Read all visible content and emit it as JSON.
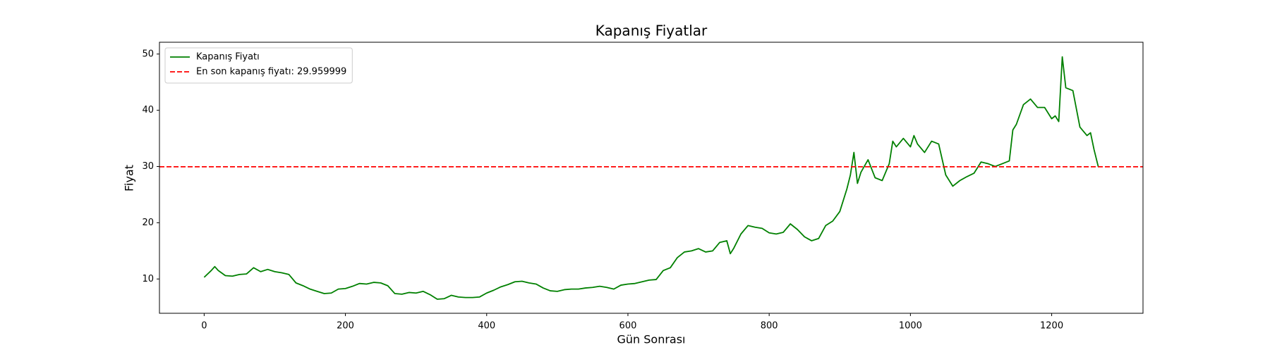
{
  "chart_data": {
    "type": "line",
    "title": "Kapanış Fiyatlar",
    "xlabel": "Gün Sonrası",
    "ylabel": "Fiyat",
    "x": [
      0,
      10,
      15,
      20,
      30,
      40,
      50,
      60,
      70,
      80,
      90,
      100,
      110,
      120,
      130,
      140,
      150,
      160,
      170,
      180,
      190,
      200,
      210,
      220,
      230,
      240,
      250,
      260,
      270,
      280,
      290,
      300,
      310,
      320,
      330,
      340,
      350,
      360,
      370,
      380,
      390,
      400,
      410,
      420,
      430,
      440,
      450,
      460,
      470,
      480,
      490,
      500,
      510,
      520,
      530,
      540,
      550,
      560,
      570,
      580,
      590,
      600,
      610,
      620,
      630,
      640,
      650,
      660,
      670,
      680,
      690,
      700,
      710,
      720,
      730,
      740,
      745,
      750,
      760,
      770,
      780,
      790,
      800,
      810,
      820,
      830,
      840,
      850,
      860,
      870,
      880,
      890,
      900,
      910,
      915,
      920,
      925,
      930,
      940,
      950,
      960,
      970,
      975,
      980,
      990,
      1000,
      1005,
      1010,
      1020,
      1030,
      1040,
      1050,
      1060,
      1070,
      1080,
      1090,
      1100,
      1110,
      1120,
      1130,
      1140,
      1145,
      1150,
      1160,
      1170,
      1180,
      1190,
      1200,
      1205,
      1210,
      1215,
      1220,
      1230,
      1240,
      1250,
      1255,
      1260,
      1266
    ],
    "series": [
      {
        "name": "Kapanış Fiyatı",
        "color": "green",
        "values": [
          10.3,
          11.5,
          12.2,
          11.5,
          10.6,
          10.5,
          10.8,
          10.9,
          12.0,
          11.3,
          11.7,
          11.3,
          11.1,
          10.8,
          9.3,
          8.8,
          8.2,
          7.8,
          7.4,
          7.5,
          8.2,
          8.3,
          8.7,
          9.2,
          9.1,
          9.4,
          9.3,
          8.8,
          7.4,
          7.3,
          7.6,
          7.5,
          7.8,
          7.2,
          6.4,
          6.5,
          7.1,
          6.8,
          6.7,
          6.7,
          6.8,
          7.5,
          8.0,
          8.6,
          9.0,
          9.5,
          9.6,
          9.3,
          9.1,
          8.4,
          7.9,
          7.8,
          8.1,
          8.2,
          8.2,
          8.4,
          8.5,
          8.7,
          8.5,
          8.2,
          8.9,
          9.1,
          9.2,
          9.5,
          9.8,
          9.9,
          11.5,
          12.0,
          13.8,
          14.8,
          15.0,
          15.4,
          14.8,
          15.0,
          16.5,
          16.8,
          14.5,
          15.5,
          18.0,
          19.5,
          19.2,
          19.0,
          18.2,
          18.0,
          18.3,
          19.8,
          18.8,
          17.5,
          16.8,
          17.2,
          19.5,
          20.3,
          22.0,
          26.0,
          28.5,
          32.5,
          27.0,
          29.0,
          31.2,
          28.0,
          27.5,
          30.5,
          34.5,
          33.5,
          35.0,
          33.5,
          35.5,
          34.0,
          32.5,
          34.5,
          34.0,
          28.5,
          26.5,
          27.5,
          28.2,
          28.8,
          30.8,
          30.5,
          30.0,
          30.5,
          31.0,
          36.5,
          37.5,
          41.0,
          42.0,
          40.5,
          40.5,
          38.5,
          39.0,
          38.0,
          49.5,
          44.0,
          43.5,
          37.0,
          35.5,
          36.0,
          33.0,
          29.96
        ]
      }
    ],
    "hlines": [
      {
        "value": 29.959999,
        "label": "En son kapanış fiyatı: 29.959999",
        "color": "red",
        "style": "dashed"
      }
    ],
    "xlim": [
      -63.3,
      1329.3
    ],
    "ylim": [
      3.9,
      52.1
    ],
    "xticks": [
      0,
      200,
      400,
      600,
      800,
      1000,
      1200
    ],
    "yticks": [
      10,
      20,
      30,
      40,
      50
    ],
    "grid": false,
    "legend": "upper left"
  }
}
